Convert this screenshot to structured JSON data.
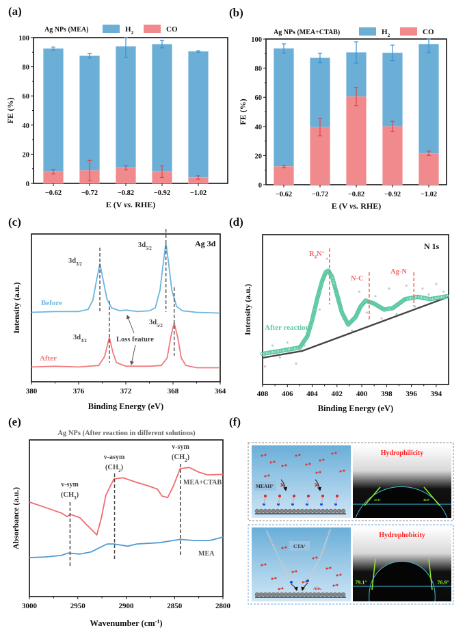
{
  "panel_labels": [
    "(a)",
    "(b)",
    "(c)",
    "(d)",
    "(e)",
    "(f)"
  ],
  "colors": {
    "h2": "#6baed6",
    "co": "#f08a8c",
    "h2_err": "#3a8fd0",
    "co_err": "#e0454a",
    "before": "#6ab4e0",
    "after": "#f0797c",
    "fit": "#5cc8a0",
    "marker": "#f06a6a",
    "mea": "#4a9ad4",
    "ctab": "#f06a70",
    "hydro_text": "#ff2020",
    "contact_line": "#40c0e0",
    "angle": "#8cf020"
  },
  "chart_data": [
    {
      "id": "a",
      "type": "bar",
      "stacked": true,
      "legend_title": "Ag NPs (MEA)",
      "categories": [
        "−0.62",
        "−0.72",
        "−0.82",
        "−0.92",
        "−1.02"
      ],
      "series": [
        {
          "name": "CO",
          "values": [
            8,
            8.8,
            10.8,
            8,
            4
          ],
          "errors": [
            1.5,
            7,
            1.5,
            4,
            1.2
          ]
        },
        {
          "name": "H2",
          "name_main": "H",
          "name_sub": "2",
          "values": [
            84.5,
            78.7,
            83.2,
            87.5,
            86.5
          ],
          "errors": [
            1,
            1.5,
            7.5,
            2.5,
            0.5
          ]
        }
      ],
      "xlabel": [
        "E (V ",
        "vs.",
        " RHE)"
      ],
      "ylabel": "FE (%)",
      "ylim": [
        0,
        100
      ],
      "yticks": [
        "0",
        "20",
        "40",
        "60",
        "80",
        "100"
      ]
    },
    {
      "id": "b",
      "type": "bar",
      "stacked": true,
      "legend_title": "Ag NPs (MEA+CTAB)",
      "categories": [
        "−0.62",
        "−0.72",
        "−0.82",
        "−0.92",
        "−1.02"
      ],
      "series": [
        {
          "name": "CO",
          "values": [
            12.5,
            39.5,
            60.5,
            40,
            21.5
          ],
          "errors": [
            0.8,
            6,
            6.3,
            3.5,
            1.5
          ]
        },
        {
          "name": "H2",
          "name_main": "H",
          "name_sub": "2",
          "values": [
            81,
            47.5,
            30.3,
            50.5,
            75
          ],
          "errors": [
            3.2,
            3.2,
            7.3,
            5.3,
            5.8
          ]
        }
      ],
      "xlabel": [
        "E (V ",
        "vs.",
        " RHE)"
      ],
      "ylabel": "FE (%)",
      "ylim": [
        0,
        100
      ],
      "yticks": [
        "0",
        "20",
        "40",
        "60",
        "80",
        "100"
      ]
    },
    {
      "id": "c",
      "type": "line",
      "annotation": "Ag 3d",
      "xlabel": "Binding Energy (eV)",
      "ylabel": "Intensity (a.u.)",
      "xlim": [
        380,
        364
      ],
      "xticks": [
        380,
        376,
        372,
        368,
        364
      ],
      "series": [
        {
          "name": "Before",
          "x": [
            380,
            378,
            376,
            375.2,
            374.8,
            374.5,
            374.2,
            373.9,
            373.6,
            373.2,
            372.5,
            372,
            371,
            370,
            369.5,
            369.1,
            368.8,
            368.6,
            368.4,
            368.1,
            367.7,
            367.2,
            366,
            364
          ],
          "y": [
            47,
            47.5,
            47.5,
            49,
            55,
            68,
            80,
            68,
            56,
            50,
            48,
            48.5,
            47.5,
            48,
            50,
            62,
            82,
            94,
            82,
            62,
            51,
            48,
            47,
            46.5
          ]
        },
        {
          "name": "After",
          "x": [
            380,
            378,
            376,
            374.3,
            373.8,
            373.4,
            373.1,
            372.8,
            372,
            370,
            369,
            368.5,
            368.2,
            367.9,
            367.6,
            367.3,
            366.9,
            366,
            364
          ],
          "y": [
            10,
            10.5,
            10,
            11,
            17,
            30,
            20,
            13,
            10.5,
            10.5,
            11,
            16,
            30,
            40,
            30,
            16,
            11,
            9.5,
            9.5
          ]
        }
      ],
      "peak_markers": [
        {
          "x": 374.2,
          "label": "3d",
          "sub": "3/2",
          "series": "Before"
        },
        {
          "x": 368.6,
          "label": "3d",
          "sub": "5/2",
          "series": "Before"
        },
        {
          "x": 373.4,
          "label": "3d",
          "sub": "3/2",
          "series": "After"
        },
        {
          "x": 367.9,
          "label": "3d",
          "sub": "5/2",
          "series": "After"
        }
      ],
      "loss_feature_label": "Loss feature"
    },
    {
      "id": "d",
      "type": "line",
      "annotation": "N 1s",
      "xlabel": "Binding Energy (eV)",
      "ylabel": "Intensity (a.u.)",
      "xlim": [
        408,
        393
      ],
      "xticks": [
        408,
        406,
        404,
        402,
        400,
        398,
        396,
        394
      ],
      "series": [
        {
          "name": "After reaction",
          "x": [
            408,
            406.5,
            405,
            404.4,
            404,
            403.6,
            403.2,
            402.9,
            402.7,
            402.4,
            402.2,
            401.9,
            401.6,
            401.1,
            400.5,
            400.1,
            399.7,
            399,
            398.2,
            397.5,
            397,
            396.5,
            395.5,
            394.5,
            393
          ],
          "y": [
            20.5,
            22.5,
            24.7,
            32,
            43,
            57,
            69,
            75,
            76,
            72,
            66,
            57,
            48,
            40,
            45,
            52,
            56,
            54,
            50,
            51,
            54,
            57,
            58.5,
            57,
            59
          ]
        },
        {
          "name": "background",
          "x": [
            408,
            404.8,
            393
          ],
          "y": [
            17.8,
            22.4,
            58.5
          ]
        },
        {
          "name": "raw",
          "x": [
            407.8,
            407.2,
            406.6,
            406,
            405.3,
            404.6,
            403.4,
            402.8,
            401.5,
            400.8,
            400.2,
            399.6,
            398.9,
            398.4,
            397.8,
            397.2,
            396.4,
            395.7,
            395.1,
            394.6,
            394,
            393.4
          ],
          "y": [
            12,
            26,
            18,
            28,
            14,
            26,
            50,
            84,
            44,
            36,
            62,
            48,
            59,
            44,
            64,
            47,
            66,
            52,
            64,
            60,
            67,
            62
          ]
        }
      ],
      "peak_markers": [
        {
          "x": 402.6,
          "label": "R",
          "sub": "4",
          "tail": "N",
          "sup": "+"
        },
        {
          "x": 399.4,
          "label": "N-C"
        },
        {
          "x": 395.8,
          "label": "Ag-N"
        }
      ]
    },
    {
      "id": "e",
      "type": "line",
      "title": "Ag NPs (After reaction in different solutions)",
      "xlabel": "Wavenumber (cm",
      "xlabel_sup": "-1",
      "xlabel_tail": ")",
      "ylabel": "Absorbance (a.u.)",
      "xlim": [
        3000,
        2800
      ],
      "xticks": [
        3000,
        2950,
        2900,
        2850,
        2800
      ],
      "series": [
        {
          "name": "MEA+CTAB",
          "x": [
            3000,
            2983.5,
            2966.9,
            2961,
            2957.5,
            2948,
            2941,
            2930.3,
            2925.6,
            2920.9,
            2912.6,
            2903.2,
            2889,
            2877.2,
            2867.8,
            2863,
            2857.1,
            2851.2,
            2844.2,
            2834.7,
            2825.3,
            2815.8,
            2800
          ],
          "y": [
            60.3,
            56.9,
            53.3,
            51.1,
            52.5,
            50.4,
            46,
            39.4,
            50.4,
            64.9,
            75.1,
            75.8,
            72.9,
            70.7,
            68.6,
            64.2,
            63.2,
            70.7,
            81.7,
            82.4,
            79.5,
            77.7,
            78
          ]
        },
        {
          "name": "MEA",
          "x": [
            3000,
            2983.5,
            2966.9,
            2959.9,
            2948,
            2936.2,
            2926.8,
            2919.7,
            2912.6,
            2898.5,
            2889,
            2865.4,
            2844.2,
            2830,
            2813.5,
            2800
          ],
          "y": [
            24.9,
            25.3,
            26.3,
            27.8,
            27.1,
            28.5,
            31.4,
            33.6,
            33.6,
            32.2,
            33.6,
            34.4,
            36.5,
            35.8,
            35.8,
            38
          ]
        }
      ],
      "peak_markers": [
        {
          "x": 2958,
          "line1": "v-sym",
          "line2": "(CH",
          "sub": "3",
          "tail": ")"
        },
        {
          "x": 2912,
          "line1": "v-asym",
          "line2": "(CH",
          "sub": "2",
          "tail": ")"
        },
        {
          "x": 2844,
          "line1": "v-sym",
          "line2": "(CH",
          "sub": "2",
          "tail": ")"
        }
      ]
    }
  ],
  "panel_f": {
    "top": {
      "ion_label": "MEAH",
      "ion_sup": "+",
      "title": "Hydrophilicity",
      "angle_left": "47.6°",
      "angle_right": "46.0°"
    },
    "bottom": {
      "ion_label": "CTA",
      "ion_sup": "+",
      "abs_label": "Abs.",
      "title": "Hydrophobicity",
      "angle_left": "79.1°",
      "angle_right": "76.9°"
    }
  }
}
